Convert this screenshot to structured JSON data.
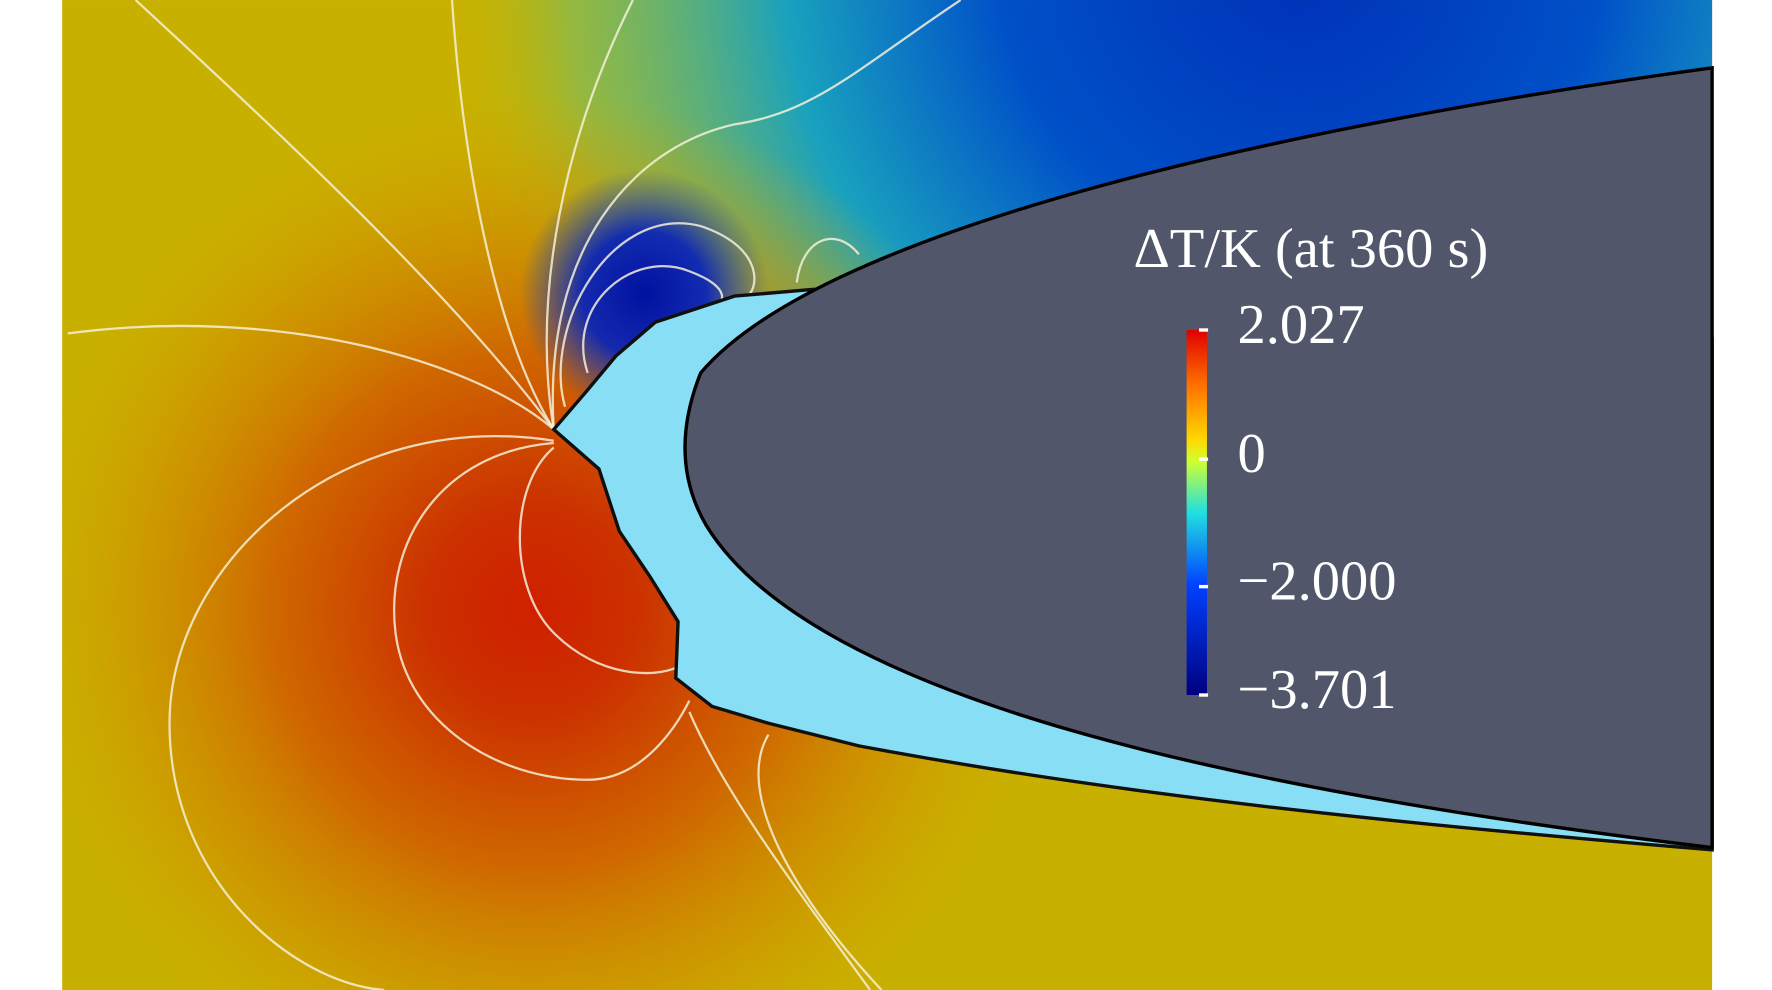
{
  "chart_data": {
    "type": "contour",
    "colorbar": {
      "title": "ΔT/K (at 360 s)",
      "lim": [
        -3.701,
        2.027
      ],
      "ticks": [
        2.027,
        0,
        {
          "value": -2,
          "label": "−2.000"
        },
        {
          "value": -3.701,
          "label": "−3.701"
        }
      ]
    }
  }
}
